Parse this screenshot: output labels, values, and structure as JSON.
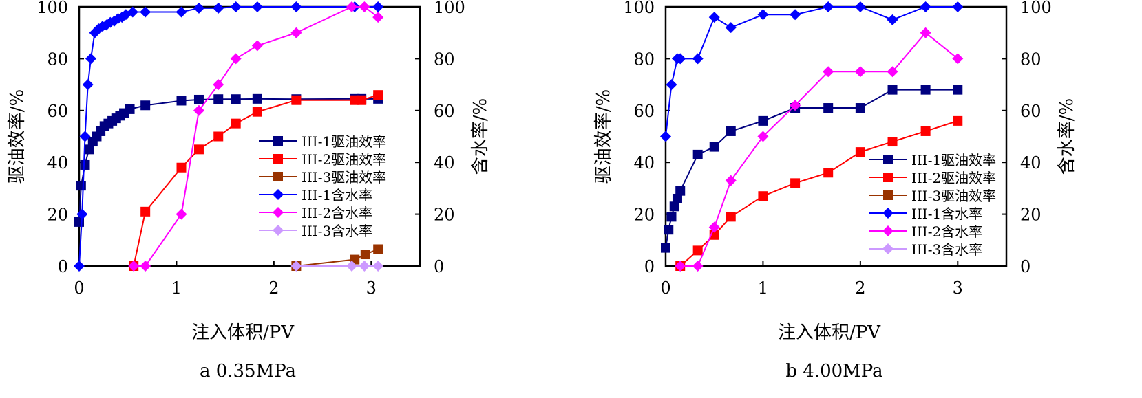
{
  "chart_data": [
    {
      "type": "line",
      "caption": "a 0.35MPa",
      "xlabel": "注入体积/PV",
      "ylabel": "驱油效率/%",
      "y2label": "含水率/%",
      "xlim": [
        0,
        3.5
      ],
      "ylim": [
        0,
        100
      ],
      "y2lim": [
        0,
        100
      ],
      "xticks": [
        "0",
        "1",
        "2",
        "3"
      ],
      "yticks": [
        "0",
        "20",
        "40",
        "60",
        "80",
        "100"
      ],
      "y2ticks": [
        "0",
        "20",
        "40",
        "60",
        "80",
        "100"
      ],
      "legend_position": "right-middle",
      "series": [
        {
          "name": "III-1驱油效率",
          "color": "#000080",
          "marker": "square",
          "axis": "left",
          "x": [
            0,
            0.02,
            0.06,
            0.1,
            0.14,
            0.18,
            0.22,
            0.26,
            0.3,
            0.34,
            0.38,
            0.42,
            0.46,
            0.52,
            0.68,
            1.05,
            1.23,
            1.43,
            1.61,
            1.83,
            2.23,
            2.83,
            2.9,
            3.07
          ],
          "y": [
            17,
            31,
            39,
            45,
            48,
            50,
            52,
            54,
            55,
            56,
            57,
            58,
            59,
            60.5,
            62,
            63.8,
            64.2,
            64.4,
            64.4,
            64.5,
            64.4,
            64.5,
            64.5,
            64.5
          ]
        },
        {
          "name": "III-2驱油效率",
          "color": "#ff0000",
          "marker": "square",
          "axis": "left",
          "x": [
            0.56,
            0.68,
            1.05,
            1.23,
            1.43,
            1.61,
            1.83,
            2.23,
            2.83,
            2.9,
            3.07
          ],
          "y": [
            0,
            21,
            38,
            45,
            50,
            55,
            59.5,
            64,
            64,
            64,
            66
          ]
        },
        {
          "name": "III-3驱油效率",
          "color": "#993300",
          "marker": "square",
          "axis": "left",
          "x": [
            2.23,
            2.83,
            2.94,
            3.07
          ],
          "y": [
            0,
            2.5,
            4.5,
            6.5
          ]
        },
        {
          "name": "III-1含水率",
          "color": "#0000ff",
          "marker": "diamond",
          "axis": "right",
          "x": [
            0,
            0.03,
            0.06,
            0.09,
            0.12,
            0.16,
            0.2,
            0.24,
            0.28,
            0.32,
            0.36,
            0.4,
            0.44,
            0.48,
            0.55,
            0.68,
            1.05,
            1.23,
            1.43,
            1.61,
            1.83,
            2.23,
            2.83,
            3.07
          ],
          "y": [
            0,
            20,
            50,
            70,
            80,
            90,
            91.5,
            92.5,
            93,
            94,
            94.5,
            95.5,
            96,
            97,
            98,
            98,
            98,
            99.5,
            99.5,
            100,
            100,
            100,
            100,
            100
          ]
        },
        {
          "name": "III-2含水率",
          "color": "#ff00ff",
          "marker": "diamond",
          "axis": "right",
          "x": [
            0.56,
            0.68,
            1.05,
            1.23,
            1.43,
            1.61,
            1.83,
            2.23,
            2.8,
            2.93,
            3.07
          ],
          "y": [
            0,
            0,
            20,
            60,
            70,
            80,
            85,
            90,
            100,
            100,
            96
          ]
        },
        {
          "name": "III-3含水率",
          "color": "#cc99ff",
          "marker": "diamond",
          "axis": "right",
          "x": [
            2.23,
            2.8,
            2.93,
            3.07
          ],
          "y": [
            0,
            0,
            0,
            0
          ]
        }
      ]
    },
    {
      "type": "line",
      "caption": "b 4.00MPa",
      "xlabel": "注入体积/PV",
      "ylabel": "驱油效率/%",
      "y2label": "含水率/%",
      "xlim": [
        0,
        3.5
      ],
      "ylim": [
        0,
        100
      ],
      "y2lim": [
        0,
        100
      ],
      "xticks": [
        "0",
        "1",
        "2",
        "3"
      ],
      "yticks": [
        "0",
        "20",
        "40",
        "60",
        "80",
        "100"
      ],
      "y2ticks": [
        "0",
        "20",
        "40",
        "60",
        "80",
        "100"
      ],
      "legend_position": "right-middle",
      "series": [
        {
          "name": "III-1驱油效率",
          "color": "#000080",
          "marker": "square",
          "axis": "left",
          "x": [
            0,
            0.03,
            0.06,
            0.09,
            0.12,
            0.15,
            0.33,
            0.5,
            0.67,
            1.0,
            1.33,
            1.67,
            2.0,
            2.33,
            2.67,
            3.0
          ],
          "y": [
            7,
            14,
            19,
            23,
            26,
            29,
            43,
            46,
            52,
            56,
            61,
            61,
            61,
            68,
            68,
            68
          ]
        },
        {
          "name": "III-2驱油效率",
          "color": "#ff0000",
          "marker": "square",
          "axis": "left",
          "x": [
            0.15,
            0.33,
            0.5,
            0.67,
            1.0,
            1.33,
            1.67,
            2.0,
            2.33,
            2.67,
            3.0
          ],
          "y": [
            0,
            6,
            12,
            19,
            27,
            32,
            36,
            44,
            48,
            52,
            56
          ]
        },
        {
          "name": "III-3驱油效率",
          "color": "#993300",
          "marker": "square",
          "axis": "left",
          "x": [],
          "y": []
        },
        {
          "name": "III-1含水率",
          "color": "#0000ff",
          "marker": "diamond",
          "axis": "right",
          "x": [
            0,
            0.06,
            0.12,
            0.15,
            0.33,
            0.5,
            0.67,
            1.0,
            1.33,
            1.67,
            2.0,
            2.33,
            2.67,
            3.0
          ],
          "y": [
            50,
            70,
            80,
            80,
            80,
            96,
            92,
            97,
            97,
            100,
            100,
            95,
            100,
            100
          ]
        },
        {
          "name": "III-2含水率",
          "color": "#ff00ff",
          "marker": "diamond",
          "axis": "right",
          "x": [
            0.15,
            0.33,
            0.5,
            0.67,
            1.0,
            1.33,
            1.67,
            2.0,
            2.33,
            2.67,
            3.0
          ],
          "y": [
            0,
            0,
            15,
            33,
            50,
            62,
            75,
            75,
            75,
            90,
            80
          ]
        },
        {
          "name": "III-3含水率",
          "color": "#cc99ff",
          "marker": "diamond",
          "axis": "right",
          "x": [],
          "y": []
        }
      ]
    }
  ]
}
